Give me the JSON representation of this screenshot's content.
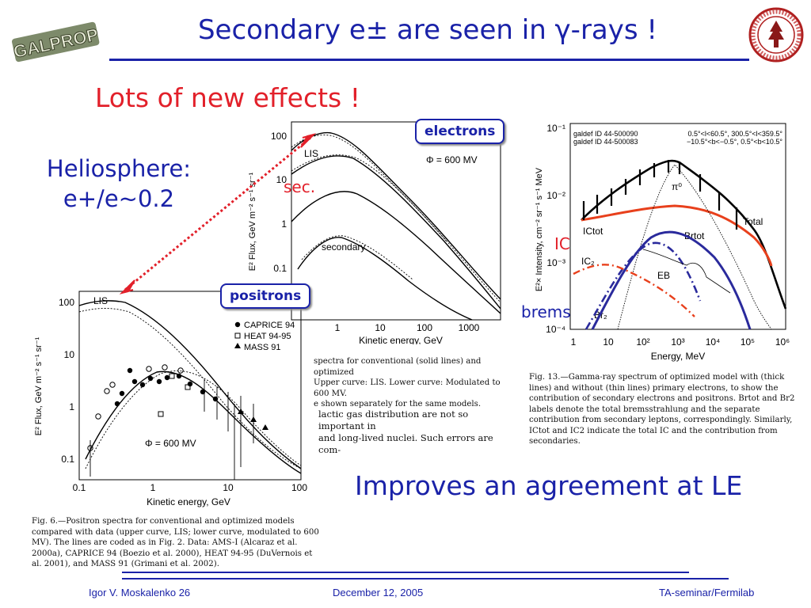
{
  "slide": {
    "title": "Secondary e± are seen in γ-rays !",
    "subtitle": "Lots of new effects !",
    "helio_line1": "Heliosphere:",
    "helio_line2": "e+/e~0.2",
    "improves": "Improves an agreement at LE",
    "logo_left": "GALPROP",
    "labels": {
      "electrons": "electrons",
      "positrons": "positrons",
      "sec": "sec.",
      "ic": "IC",
      "brems": "brems"
    },
    "colors": {
      "title": "#1a22a8",
      "accent": "#e2202a",
      "ic_curve": "#e8401c",
      "brems_curve": "#2a2a9c"
    }
  },
  "footer": {
    "author": "Igor V. Moskalenko  26",
    "date": "December 12, 2005",
    "venue": "TA-seminar/Fermilab"
  },
  "captions": {
    "fig_electron_partial_1": "spectra for conventional (solid lines) and optimized",
    "fig_electron_partial_2": "Upper curve: LIS. Lower curve: Modulated to 600 MV.",
    "fig_electron_partial_3": "e shown separately for the same models.",
    "text_partial_1": "lactic gas distribution are not so important in",
    "text_partial_2": "and long-lived nuclei. Such errors are com-",
    "fig6": "Fig. 6.—Positron spectra for conventional and optimized models compared with data (upper curve, LIS; lower curve, modulated to 600 MV). The lines are coded as in Fig. 2. Data: AMS-I (Alcaraz et al. 2000a), CAPRICE 94 (Boezio et al. 2000), HEAT 94-95 (DuVernois et al. 2001), and MASS 91 (Grimani et al. 2002).",
    "fig13": "Fig. 13.—Gamma-ray spectrum of optimized model with (thick lines) and without (thin lines) primary electrons, to show the contribution of secondary electrons and positrons. Brtot and Br2 labels denote the total bremsstrahlung and the separate contribution from secondary leptons, correspondingly. Similarly, ICtot and IC2 indicate the total IC and the contribution from secondaries."
  },
  "chart_data": [
    {
      "type": "line",
      "panel": "electrons",
      "xlabel": "Kinetic energy, GeV",
      "ylabel": "E² Flux, GeV m⁻² s⁻¹ sr⁻¹",
      "x_ticks": [
        "1",
        "10",
        "100",
        "1000"
      ],
      "y_ticks": [
        "100",
        "10",
        "1",
        "0.1"
      ],
      "annotations": [
        "LIS",
        "secondary",
        "Φ = 600 MV"
      ]
    },
    {
      "type": "line",
      "panel": "positrons",
      "xlabel": "Kinetic energy, GeV",
      "ylabel": "E² Flux, GeV m⁻² s⁻¹ sr⁻¹",
      "x_ticks": [
        "0.1",
        "1",
        "10",
        "100"
      ],
      "y_ticks": [
        "100",
        "10",
        "1",
        "0.1"
      ],
      "annotations": [
        "LIS",
        "Φ = 600 MV"
      ],
      "legend": [
        "CAPRICE 94",
        "HEAT 94-95",
        "MASS 91"
      ]
    },
    {
      "type": "line",
      "panel": "gamma-rays",
      "xlabel": "Energy, MeV",
      "ylabel": "E²× Intensity, cm⁻² sr⁻¹ s⁻¹ MeV",
      "x_ticks": [
        "1",
        "10",
        "10²",
        "10³",
        "10⁴",
        "10⁵",
        "10⁶"
      ],
      "y_ticks": [
        "10⁻¹",
        "10⁻²",
        "10⁻³",
        "10⁻⁴"
      ],
      "header_left_1": "galdef ID 44-500090",
      "header_left_2": "galdef ID 44-500083",
      "header_right_1": "0.5°<l<60.5°, 300.5°<l<359.5°",
      "header_right_2": "−10.5°<b<−0.5°, 0.5°<b<10.5°",
      "annotations": [
        "π⁰",
        "Total",
        "ICtot",
        "IC₂",
        "Brtot",
        "EB",
        "Br₂"
      ]
    }
  ]
}
